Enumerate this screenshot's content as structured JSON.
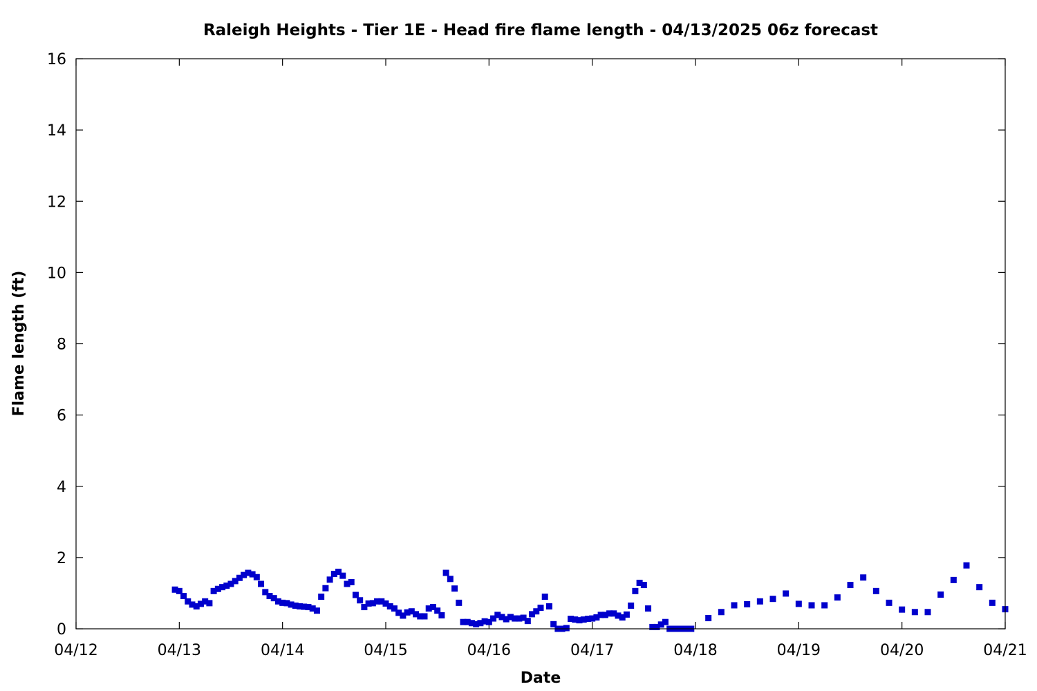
{
  "chart_data": {
    "type": "scatter",
    "title": "Raleigh Heights - Tier 1E - Head fire flame length - 04/13/2025 06z forecast",
    "xlabel": "Date",
    "ylabel": "Flame length (ft)",
    "xlim": [
      "04/12 00:00",
      "04/21 00:00"
    ],
    "ylim": [
      0,
      16
    ],
    "x_tick_labels": [
      "04/12",
      "04/13",
      "04/14",
      "04/15",
      "04/16",
      "04/17",
      "04/18",
      "04/19",
      "04/20",
      "04/21"
    ],
    "y_ticks": [
      0,
      2,
      4,
      6,
      8,
      10,
      12,
      14,
      16
    ],
    "grid": false,
    "legend": "none",
    "marker_color": "#0000cc",
    "series": [
      {
        "x": [
          "04/12 23:00",
          "04/13 00:00",
          "04/13 01:00",
          "04/13 02:00",
          "04/13 03:00",
          "04/13 04:00",
          "04/13 05:00",
          "04/13 06:00",
          "04/13 07:00",
          "04/13 08:00",
          "04/13 09:00",
          "04/13 10:00",
          "04/13 11:00",
          "04/13 12:00",
          "04/13 13:00",
          "04/13 14:00",
          "04/13 15:00",
          "04/13 16:00",
          "04/13 17:00",
          "04/13 18:00",
          "04/13 19:00",
          "04/13 20:00",
          "04/13 21:00",
          "04/13 22:00",
          "04/13 23:00",
          "04/14 00:00",
          "04/14 01:00",
          "04/14 02:00",
          "04/14 03:00",
          "04/14 04:00",
          "04/14 05:00",
          "04/14 06:00",
          "04/14 07:00",
          "04/14 08:00",
          "04/14 09:00",
          "04/14 10:00",
          "04/14 11:00",
          "04/14 12:00",
          "04/14 13:00",
          "04/14 14:00",
          "04/14 15:00",
          "04/14 16:00",
          "04/14 17:00",
          "04/14 18:00",
          "04/14 19:00",
          "04/14 20:00",
          "04/14 21:00",
          "04/14 22:00",
          "04/14 23:00",
          "04/15 00:00",
          "04/15 01:00",
          "04/15 02:00",
          "04/15 03:00",
          "04/15 04:00",
          "04/15 05:00",
          "04/15 06:00",
          "04/15 07:00",
          "04/15 08:00",
          "04/15 09:00",
          "04/15 10:00",
          "04/15 11:00",
          "04/15 12:00",
          "04/15 13:00",
          "04/15 14:00",
          "04/15 15:00",
          "04/15 16:00",
          "04/15 17:00",
          "04/15 18:00",
          "04/15 19:00",
          "04/15 20:00",
          "04/15 21:00",
          "04/15 22:00",
          "04/15 23:00",
          "04/16 00:00",
          "04/16 01:00",
          "04/16 02:00",
          "04/16 03:00",
          "04/16 04:00",
          "04/16 05:00",
          "04/16 06:00",
          "04/16 07:00",
          "04/16 08:00",
          "04/16 09:00",
          "04/16 10:00",
          "04/16 11:00",
          "04/16 12:00",
          "04/16 13:00",
          "04/16 14:00",
          "04/16 15:00",
          "04/16 16:00",
          "04/16 17:00",
          "04/16 18:00",
          "04/16 19:00",
          "04/16 20:00",
          "04/16 21:00",
          "04/16 22:00",
          "04/16 23:00",
          "04/17 00:00",
          "04/17 01:00",
          "04/17 02:00",
          "04/17 03:00",
          "04/17 04:00",
          "04/17 05:00",
          "04/17 06:00",
          "04/17 07:00",
          "04/17 08:00",
          "04/17 09:00",
          "04/17 10:00",
          "04/17 11:00",
          "04/17 12:00",
          "04/17 13:00",
          "04/17 14:00",
          "04/17 15:00",
          "04/17 16:00",
          "04/17 17:00",
          "04/17 18:00",
          "04/17 19:00",
          "04/17 20:00",
          "04/17 21:00",
          "04/17 22:00",
          "04/17 23:00",
          "04/18 03:00",
          "04/18 06:00",
          "04/18 09:00",
          "04/18 12:00",
          "04/18 15:00",
          "04/18 18:00",
          "04/18 21:00",
          "04/19 00:00",
          "04/19 03:00",
          "04/19 06:00",
          "04/19 09:00",
          "04/19 12:00",
          "04/19 15:00",
          "04/19 18:00",
          "04/19 21:00",
          "04/20 00:00",
          "04/20 03:00",
          "04/20 06:00",
          "04/20 09:00",
          "04/20 12:00",
          "04/20 15:00",
          "04/20 18:00",
          "04/20 21:00",
          "04/21 00:00"
        ],
        "y": [
          1.1,
          1.06,
          0.92,
          0.77,
          0.68,
          0.63,
          0.7,
          0.77,
          0.72,
          1.06,
          1.12,
          1.17,
          1.21,
          1.26,
          1.34,
          1.43,
          1.51,
          1.57,
          1.53,
          1.45,
          1.26,
          1.03,
          0.92,
          0.86,
          0.77,
          0.73,
          0.72,
          0.68,
          0.65,
          0.63,
          0.62,
          0.61,
          0.57,
          0.51,
          0.9,
          1.14,
          1.38,
          1.54,
          1.6,
          1.49,
          1.26,
          1.31,
          0.95,
          0.8,
          0.61,
          0.71,
          0.72,
          0.77,
          0.77,
          0.71,
          0.63,
          0.57,
          0.45,
          0.37,
          0.46,
          0.49,
          0.41,
          0.35,
          0.35,
          0.57,
          0.61,
          0.51,
          0.38,
          1.57,
          1.4,
          1.13,
          0.73,
          0.19,
          0.19,
          0.16,
          0.13,
          0.16,
          0.21,
          0.19,
          0.29,
          0.39,
          0.33,
          0.27,
          0.33,
          0.29,
          0.29,
          0.31,
          0.22,
          0.41,
          0.49,
          0.59,
          0.9,
          0.63,
          0.13,
          0.0,
          0.0,
          0.02,
          0.28,
          0.26,
          0.24,
          0.26,
          0.28,
          0.29,
          0.32,
          0.39,
          0.39,
          0.43,
          0.43,
          0.37,
          0.32,
          0.4,
          0.65,
          1.06,
          1.29,
          1.23,
          0.57,
          0.05,
          0.05,
          0.12,
          0.19,
          0.0,
          0.0,
          0.0,
          0.0,
          0.0,
          0.0,
          0.3,
          0.47,
          0.66,
          0.69,
          0.77,
          0.84,
          0.99,
          0.7,
          0.66,
          0.66,
          0.88,
          1.23,
          1.44,
          1.06,
          0.73,
          0.54,
          0.47,
          0.47,
          0.96,
          1.37,
          1.78,
          1.17,
          0.73,
          0.55
        ]
      }
    ]
  }
}
